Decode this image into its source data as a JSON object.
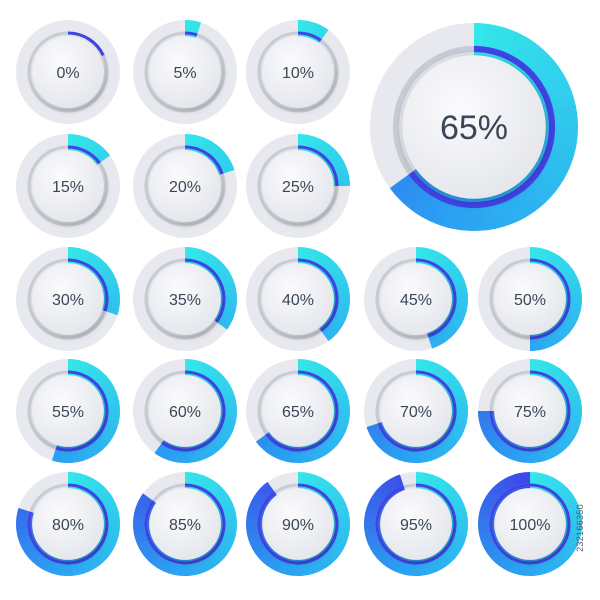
{
  "colors": {
    "background": "#ffffff",
    "track": "#e7e9ee",
    "inner_ring_base": "#c9ccd6",
    "face_light": "#fbfbfd",
    "face_dark": "#e2e4ea",
    "text": "#3b4756",
    "fill_start": "#34e6ea",
    "fill_mid": "#2aa0f2",
    "fill_end": "#3e45e8"
  },
  "featured": {
    "value": 65,
    "label": "65%"
  },
  "gauges": [
    {
      "value": 0,
      "label": "0%"
    },
    {
      "value": 5,
      "label": "5%"
    },
    {
      "value": 10,
      "label": "10%"
    },
    {
      "value": 15,
      "label": "15%"
    },
    {
      "value": 20,
      "label": "20%"
    },
    {
      "value": 25,
      "label": "25%"
    },
    {
      "value": 30,
      "label": "30%"
    },
    {
      "value": 35,
      "label": "35%"
    },
    {
      "value": 40,
      "label": "40%"
    },
    {
      "value": 45,
      "label": "45%"
    },
    {
      "value": 50,
      "label": "50%"
    },
    {
      "value": 55,
      "label": "55%"
    },
    {
      "value": 60,
      "label": "60%"
    },
    {
      "value": 65,
      "label": "65%"
    },
    {
      "value": 70,
      "label": "70%"
    },
    {
      "value": 75,
      "label": "75%"
    },
    {
      "value": 80,
      "label": "80%"
    },
    {
      "value": 85,
      "label": "85%"
    },
    {
      "value": 90,
      "label": "90%"
    },
    {
      "value": 95,
      "label": "95%"
    },
    {
      "value": 100,
      "label": "100%"
    }
  ],
  "stock_id": "232166350"
}
